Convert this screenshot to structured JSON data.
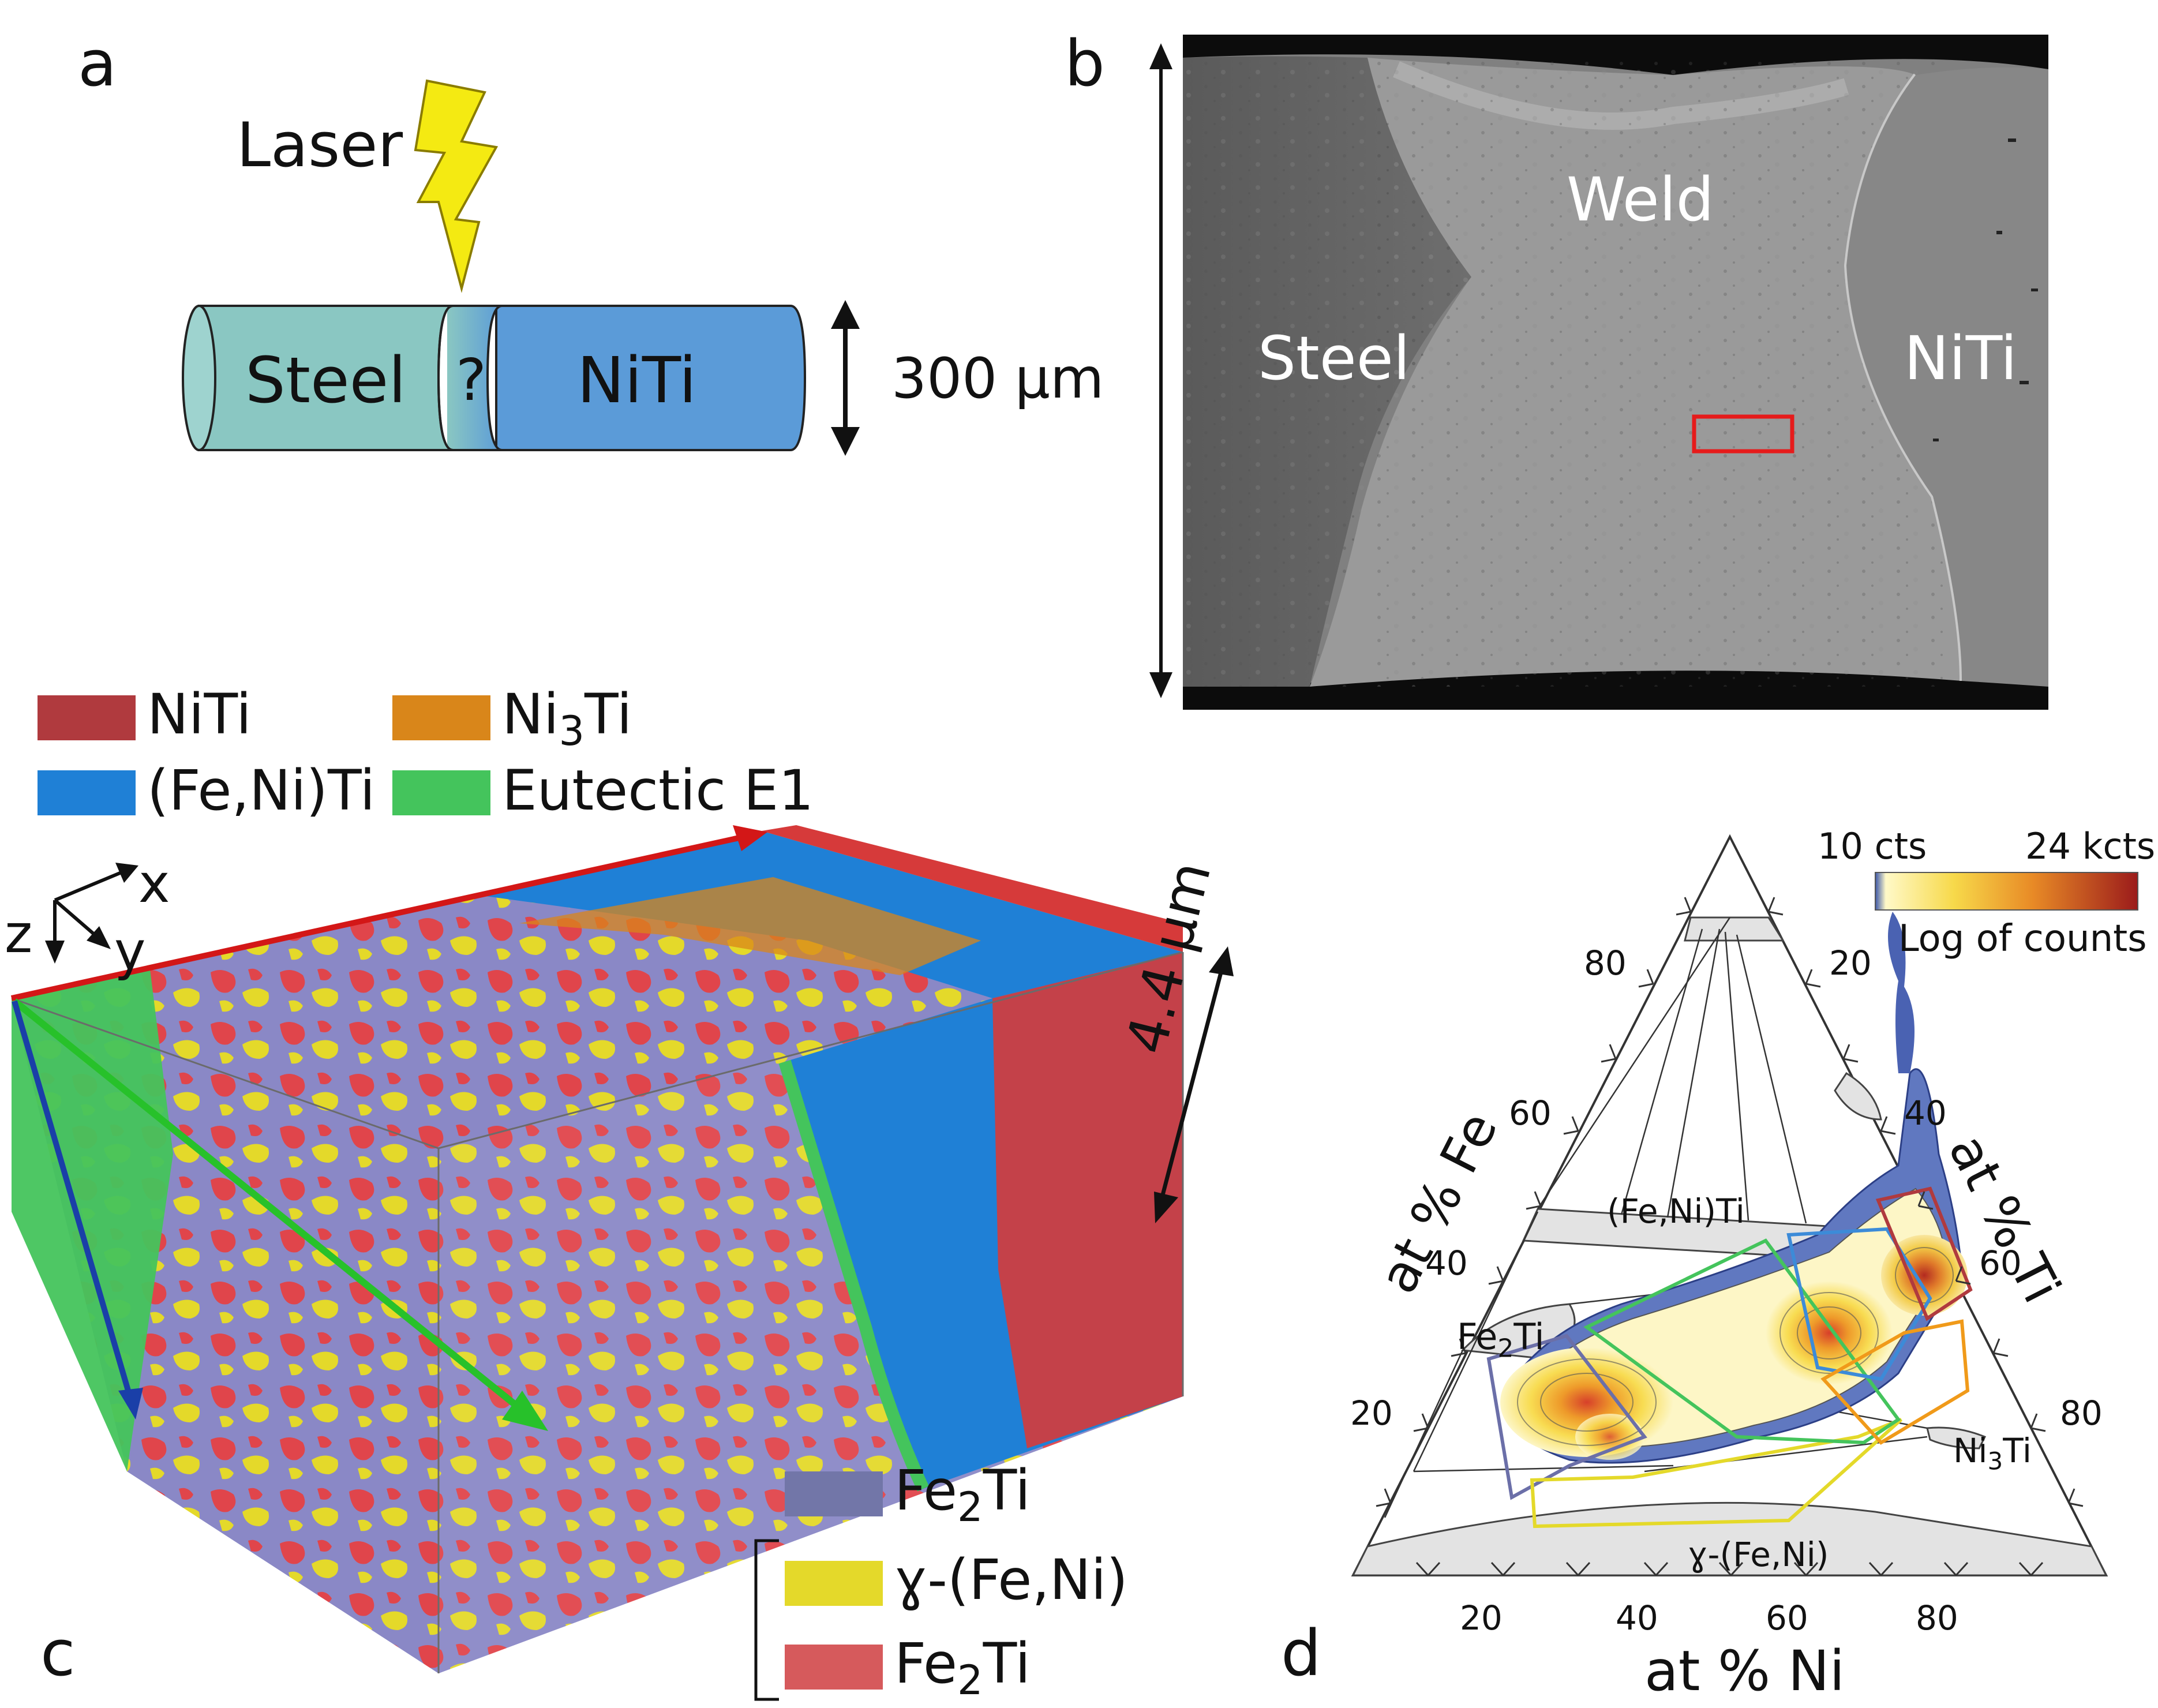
{
  "panel_a": {
    "label": "a",
    "laser": "Laser",
    "steel": "Steel",
    "unknown": "?",
    "niti": "NiTi",
    "diameter": "300 μm"
  },
  "panel_b": {
    "label": "b",
    "steel": "Steel",
    "weld": "Weld",
    "niti": "NiTi"
  },
  "panel_c": {
    "label": "c",
    "legend_top": [
      {
        "label": "NiTi",
        "color": "#b03a3e"
      },
      {
        "label": "Ni",
        "sub": "3",
        "suffix": "Ti",
        "color": "#d9861a"
      },
      {
        "label": "(Fe,Ni)Ti",
        "color": "#1f80d6"
      },
      {
        "label": "Eutectic E1",
        "color": "#44c45c"
      }
    ],
    "legend_bottom": [
      {
        "label": "Fe",
        "sub": "2",
        "suffix": "Ti",
        "color": "#7276a8"
      },
      {
        "label": "ɣ-(Fe,Ni)",
        "color": "#e4d92a"
      },
      {
        "label": "Fe",
        "sub": "2",
        "suffix": "Ti",
        "color": "#d65a5c"
      }
    ],
    "axes": {
      "x": "x",
      "y": "y",
      "z": "z"
    },
    "thickness": "4.4 μm"
  },
  "panel_d": {
    "label": "d",
    "axis_fe": "at % Fe",
    "axis_ti": "at % Ti",
    "axis_ni": "at % Ni",
    "fe_ticks": [
      "80",
      "60",
      "40",
      "20"
    ],
    "ti_ticks": [
      "20",
      "40",
      "60",
      "80"
    ],
    "ni_ticks": [
      "20",
      "40",
      "60",
      "80"
    ],
    "phases": {
      "feniti": "(Fe,Ni)Ti",
      "fe2ti_main": "Fe",
      "fe2ti_sub": "2",
      "fe2ti_suffix": "Ti",
      "ni3ti_main": "Ni",
      "ni3ti_sub": "3",
      "ni3ti_suffix": "Ti",
      "gamma": "ɣ-(Fe,Ni)"
    },
    "colorbar": {
      "min": "10 cts",
      "max": "24 kcts",
      "caption": "Log of counts"
    }
  }
}
